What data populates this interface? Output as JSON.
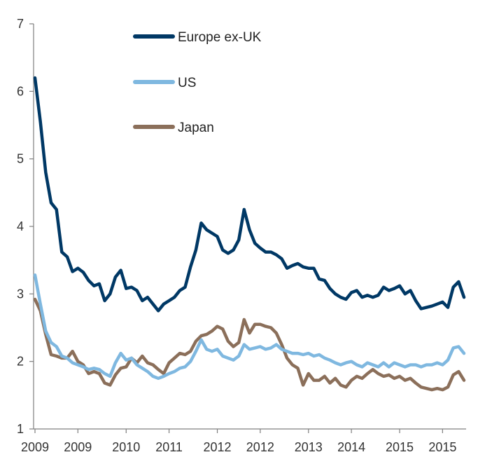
{
  "chart_data": {
    "type": "line",
    "title": "",
    "xlabel": "",
    "ylabel": "",
    "ylim": [
      1,
      7
    ],
    "xlim": [
      0,
      80
    ],
    "y_ticks": [
      1,
      2,
      3,
      4,
      5,
      6,
      7
    ],
    "y_tick_labels": [
      "1",
      "2",
      "3",
      "4",
      "5",
      "6",
      "7"
    ],
    "x_ticks": [
      0,
      8,
      17,
      25,
      34,
      42,
      51,
      59,
      68,
      76
    ],
    "x_tick_labels": [
      "2009",
      "2009",
      "2010",
      "2011",
      "2012",
      "2012",
      "2013",
      "2014",
      "2015",
      "2015"
    ],
    "grid": false,
    "legend_position": "top-center",
    "series": [
      {
        "name": "Europe ex-UK",
        "color": "#003865",
        "values": [
          6.2,
          5.55,
          4.8,
          4.35,
          4.25,
          3.62,
          3.55,
          3.33,
          3.38,
          3.32,
          3.2,
          3.12,
          3.15,
          2.9,
          3.0,
          3.25,
          3.35,
          3.08,
          3.1,
          3.05,
          2.9,
          2.95,
          2.85,
          2.75,
          2.85,
          2.9,
          2.95,
          3.05,
          3.1,
          3.4,
          3.65,
          4.05,
          3.95,
          3.9,
          3.85,
          3.65,
          3.6,
          3.65,
          3.8,
          4.25,
          3.95,
          3.75,
          3.68,
          3.62,
          3.62,
          3.58,
          3.52,
          3.38,
          3.42,
          3.45,
          3.4,
          3.38,
          3.38,
          3.22,
          3.2,
          3.08,
          3.0,
          2.95,
          2.92,
          3.02,
          3.05,
          2.95,
          2.98,
          2.95,
          2.98,
          3.1,
          3.05,
          3.08,
          3.12,
          3.0,
          3.05,
          2.9,
          2.78,
          2.8,
          2.82,
          2.85,
          2.88,
          2.8,
          3.1,
          3.18,
          2.95
        ]
      },
      {
        "name": "US",
        "color": "#7FB8E0",
        "values": [
          3.28,
          2.85,
          2.45,
          2.28,
          2.22,
          2.08,
          2.05,
          1.98,
          1.95,
          1.92,
          1.88,
          1.9,
          1.88,
          1.82,
          1.78,
          1.98,
          2.12,
          2.02,
          2.05,
          1.95,
          1.9,
          1.85,
          1.78,
          1.75,
          1.78,
          1.82,
          1.85,
          1.9,
          1.92,
          2.0,
          2.15,
          2.32,
          2.18,
          2.15,
          2.18,
          2.08,
          2.05,
          2.02,
          2.08,
          2.25,
          2.18,
          2.2,
          2.22,
          2.18,
          2.2,
          2.25,
          2.18,
          2.15,
          2.12,
          2.12,
          2.1,
          2.12,
          2.08,
          2.1,
          2.05,
          2.02,
          1.98,
          1.95,
          1.98,
          2.0,
          1.95,
          1.92,
          1.98,
          1.95,
          1.92,
          1.98,
          1.92,
          1.98,
          1.95,
          1.92,
          1.95,
          1.95,
          1.92,
          1.95,
          1.95,
          1.98,
          1.95,
          2.02,
          2.2,
          2.22,
          2.12
        ]
      },
      {
        "name": "Japan",
        "color": "#8B6F5A",
        "values": [
          2.92,
          2.75,
          2.4,
          2.1,
          2.08,
          2.05,
          2.05,
          2.15,
          2.0,
          1.95,
          1.82,
          1.85,
          1.82,
          1.68,
          1.65,
          1.8,
          1.9,
          1.92,
          2.05,
          1.98,
          2.08,
          1.98,
          1.95,
          1.88,
          1.82,
          1.98,
          2.05,
          2.12,
          2.1,
          2.15,
          2.3,
          2.38,
          2.4,
          2.45,
          2.52,
          2.48,
          2.3,
          2.22,
          2.28,
          2.62,
          2.42,
          2.55,
          2.55,
          2.52,
          2.5,
          2.42,
          2.25,
          2.05,
          1.95,
          1.9,
          1.65,
          1.82,
          1.72,
          1.72,
          1.78,
          1.68,
          1.75,
          1.65,
          1.62,
          1.72,
          1.78,
          1.75,
          1.82,
          1.88,
          1.82,
          1.78,
          1.8,
          1.75,
          1.78,
          1.72,
          1.75,
          1.68,
          1.62,
          1.6,
          1.58,
          1.6,
          1.58,
          1.62,
          1.8,
          1.85,
          1.72
        ]
      }
    ]
  }
}
